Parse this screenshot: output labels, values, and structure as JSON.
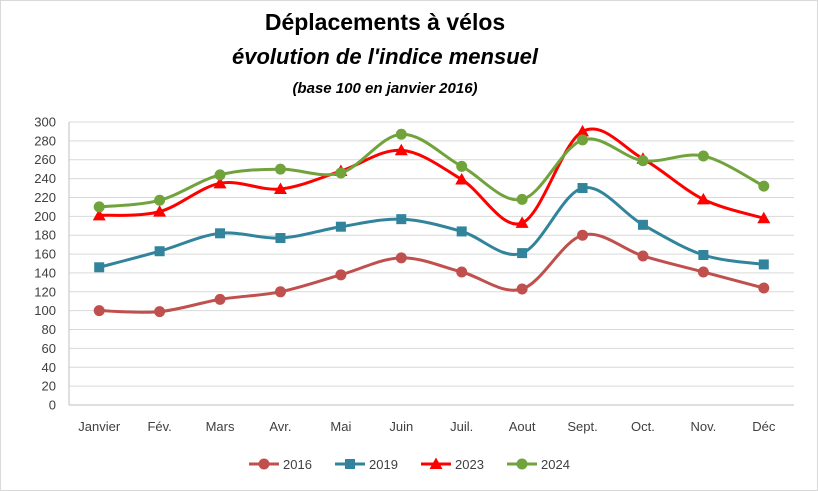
{
  "chart_data": {
    "type": "line",
    "title": "Déplacements à vélos",
    "subtitle": "évolution de l'indice mensuel",
    "note": "(base 100 en janvier 2016)",
    "categories": [
      "Janvier",
      "Fév.",
      "Mars",
      "Avr.",
      "Mai",
      "Juin",
      "Juil.",
      "Aout",
      "Sept.",
      "Oct.",
      "Nov.",
      "Déc"
    ],
    "ylim": [
      0,
      300
    ],
    "yticks": [
      0,
      20,
      40,
      60,
      80,
      100,
      120,
      140,
      160,
      180,
      200,
      220,
      240,
      260,
      280,
      300
    ],
    "grid": true,
    "legend_position": "bottom",
    "series": [
      {
        "name": "2016",
        "color": "#c0504d",
        "marker": "circle",
        "values": [
          100,
          99,
          112,
          120,
          138,
          156,
          141,
          123,
          180,
          158,
          141,
          124
        ]
      },
      {
        "name": "2019",
        "color": "#31849b",
        "marker": "square",
        "values": [
          146,
          163,
          182,
          177,
          189,
          197,
          184,
          161,
          230,
          191,
          159,
          149
        ]
      },
      {
        "name": "2023",
        "color": "#ff0000",
        "marker": "triangle",
        "values": [
          201,
          205,
          235,
          229,
          248,
          270,
          239,
          193,
          290,
          261,
          218,
          198
        ]
      },
      {
        "name": "2024",
        "color": "#70a33b",
        "marker": "circle",
        "values": [
          210,
          217,
          244,
          250,
          246,
          287,
          253,
          218,
          281,
          259,
          264,
          232
        ]
      }
    ]
  }
}
